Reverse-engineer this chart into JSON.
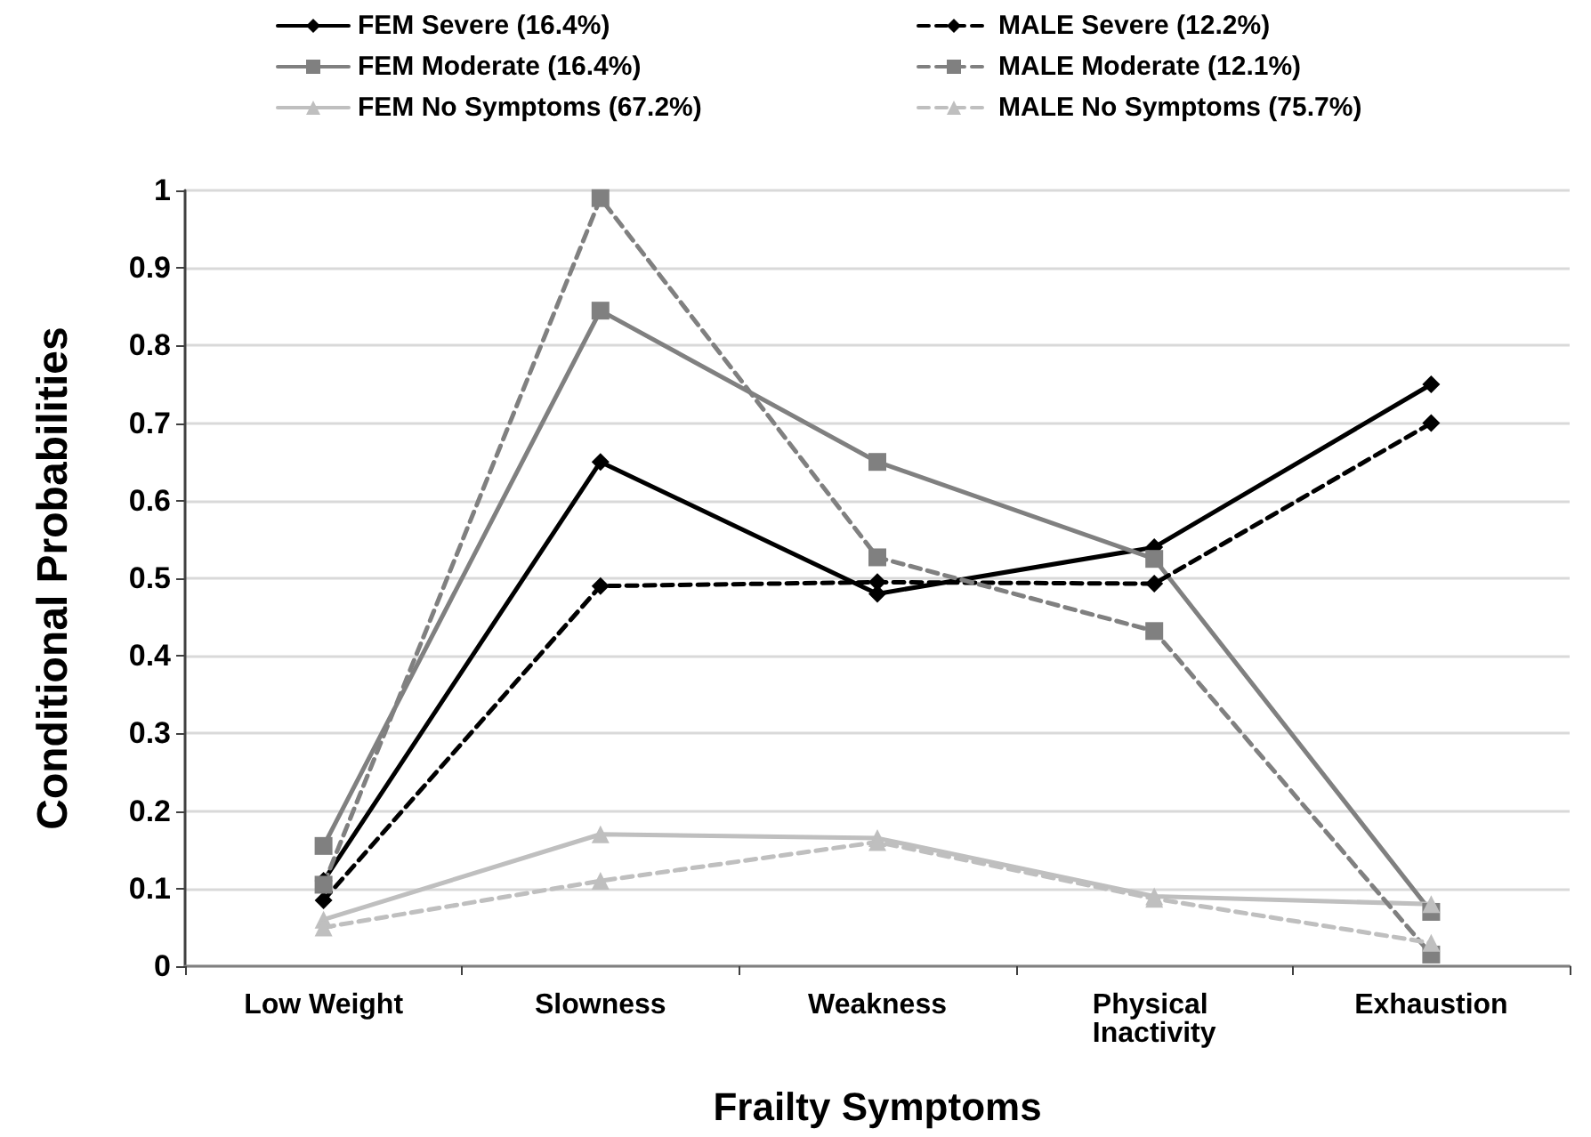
{
  "chart_data": {
    "type": "line",
    "xlabel": "Frailty Symptoms",
    "ylabel": "Conditional Probabilities",
    "categories": [
      "Low Weight",
      "Slowness",
      "Weakness",
      "Physical Inactivity",
      "Exhaustion"
    ],
    "series": [
      {
        "name": "FEM Severe (16.4%)",
        "color": "#000000",
        "marker": "diamond",
        "line_style": "solid",
        "values": [
          0.11,
          0.65,
          0.48,
          0.54,
          0.75
        ]
      },
      {
        "name": "FEM Moderate (16.4%)",
        "color": "#808080",
        "marker": "square",
        "line_style": "solid",
        "values": [
          0.155,
          0.845,
          0.65,
          0.525,
          0.07
        ]
      },
      {
        "name": "FEM No Symptoms (67.2%)",
        "color": "#bfbfbf",
        "marker": "triangle",
        "line_style": "solid",
        "values": [
          0.06,
          0.17,
          0.165,
          0.09,
          0.08
        ]
      },
      {
        "name": "MALE Severe (12.2%)",
        "color": "#000000",
        "marker": "diamond",
        "line_style": "dashed",
        "values": [
          0.085,
          0.49,
          0.495,
          0.493,
          0.7
        ]
      },
      {
        "name": "MALE Moderate (12.1%)",
        "color": "#808080",
        "marker": "square",
        "line_style": "dashed",
        "values": [
          0.105,
          0.99,
          0.527,
          0.432,
          0.015
        ]
      },
      {
        "name": "MALE No Symptoms (75.7%)",
        "color": "#bfbfbf",
        "marker": "triangle",
        "line_style": "dashed",
        "values": [
          0.05,
          0.11,
          0.16,
          0.087,
          0.03
        ]
      }
    ],
    "ylim": [
      0,
      1
    ],
    "yticks": [
      0,
      0.1,
      0.2,
      0.3,
      0.4,
      0.5,
      0.6,
      0.7,
      0.8,
      0.9,
      1
    ],
    "grid": "y",
    "legend": "top"
  }
}
